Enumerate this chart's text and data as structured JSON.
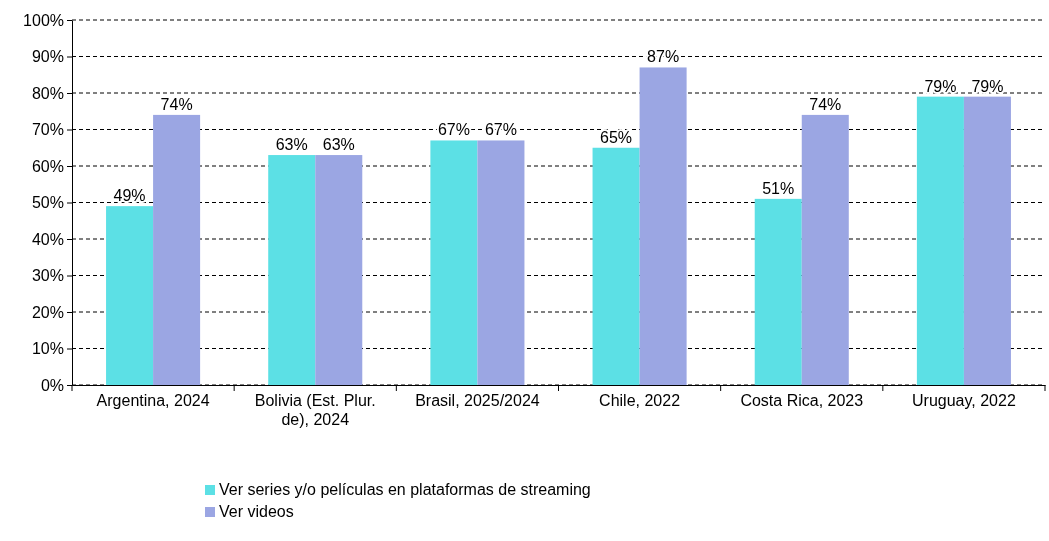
{
  "chart_data": {
    "type": "bar",
    "categories": [
      "Argentina, 2024",
      "Bolivia (Est. Plur. de), 2024",
      "Brasil, 2025/2024",
      "Chile, 2022",
      "Costa Rica, 2023",
      "Uruguay, 2022"
    ],
    "series": [
      {
        "name": "Ver series y/o películas en plataformas de streaming",
        "color": "#5ce0e5",
        "values": [
          49,
          63,
          67,
          65,
          51,
          79
        ],
        "value_labels": [
          "49%",
          "63%",
          "67%",
          "65%",
          "51%",
          "79%"
        ]
      },
      {
        "name": "Ver videos",
        "color": "#9ba6e3",
        "values": [
          74,
          63,
          67,
          87,
          74,
          79
        ],
        "value_labels": [
          "74%",
          "63%",
          "67%",
          "87%",
          "74%",
          "79%"
        ]
      }
    ],
    "ylim": [
      0,
      100
    ],
    "yticks": [
      {
        "value": 0,
        "label": "0%"
      },
      {
        "value": 10,
        "label": "10%"
      },
      {
        "value": 20,
        "label": "20%"
      },
      {
        "value": 30,
        "label": "30%"
      },
      {
        "value": 40,
        "label": "40%"
      },
      {
        "value": 50,
        "label": "50%"
      },
      {
        "value": 60,
        "label": "60%"
      },
      {
        "value": 70,
        "label": "70%"
      },
      {
        "value": 80,
        "label": "80%"
      },
      {
        "value": 90,
        "label": "90%"
      },
      {
        "value": 100,
        "label": "100%"
      }
    ],
    "grid": "y",
    "legend": "bottom"
  }
}
